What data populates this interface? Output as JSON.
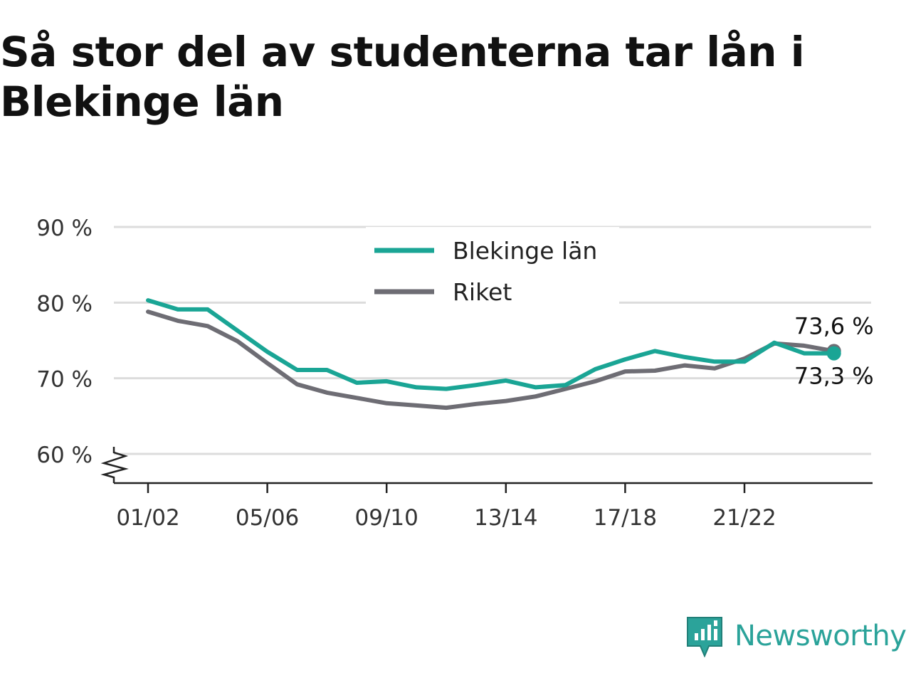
{
  "title": "Så stor del av studenterna tar lån i Blekinge län",
  "brand": {
    "name": "Newsworthy",
    "icon": "newsworthy-logo-icon",
    "color": "#2ba39a"
  },
  "chart_data": {
    "type": "line",
    "title": "Så stor del av studenterna tar lån i Blekinge län",
    "xlabel": "",
    "ylabel": "",
    "ylim": [
      60,
      90
    ],
    "y_axis_break": true,
    "y_ticks": [
      "60 %",
      "70 %",
      "80 %",
      "90 %"
    ],
    "y_tick_values": [
      60,
      70,
      80,
      90
    ],
    "x": [
      "01/02",
      "02/03",
      "03/04",
      "04/05",
      "05/06",
      "06/07",
      "07/08",
      "08/09",
      "09/10",
      "10/11",
      "11/12",
      "12/13",
      "13/14",
      "14/15",
      "15/16",
      "16/17",
      "17/18",
      "18/19",
      "19/20",
      "20/21",
      "21/22",
      "22/23",
      "23/24",
      "24/25"
    ],
    "x_ticks": [
      "01/02",
      "05/06",
      "09/10",
      "13/14",
      "17/18",
      "21/22"
    ],
    "grid": true,
    "legend_position": "top-center",
    "series": [
      {
        "name": "Blekinge län",
        "color": "#1aa595",
        "values": [
          80.3,
          79.1,
          79.1,
          76.3,
          73.5,
          71.1,
          71.1,
          69.4,
          69.6,
          68.8,
          68.6,
          69.1,
          69.7,
          68.8,
          69.1,
          71.2,
          72.5,
          73.6,
          72.8,
          72.2,
          72.2,
          74.7,
          73.3,
          73.3
        ]
      },
      {
        "name": "Riket",
        "color": "#6e6d74",
        "values": [
          78.8,
          77.6,
          76.9,
          74.9,
          72.0,
          69.2,
          68.1,
          67.4,
          66.7,
          66.4,
          66.1,
          66.6,
          67.0,
          67.6,
          68.6,
          69.6,
          70.9,
          71.0,
          71.7,
          71.3,
          72.6,
          74.6,
          74.3,
          73.6
        ]
      }
    ],
    "end_labels": {
      "Riket": "73,6 %",
      "Blekinge län": "73,3 %"
    }
  }
}
